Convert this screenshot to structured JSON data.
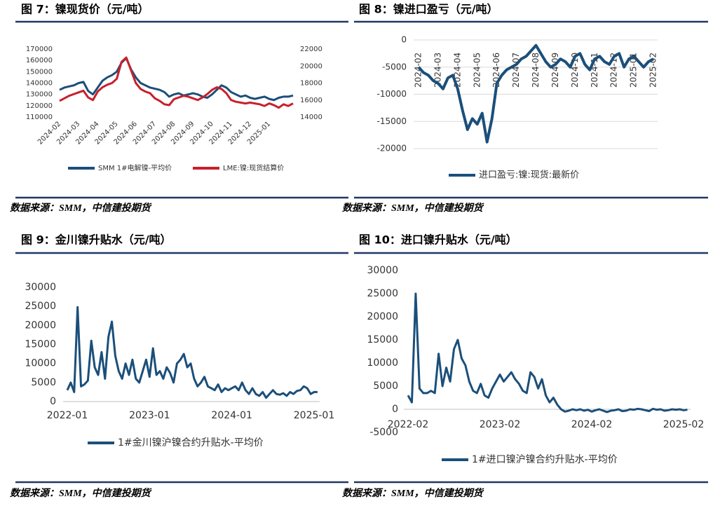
{
  "chart_data": [
    {
      "type": "line",
      "title": "图 7：镍现货价（元/吨）",
      "source": "数据来源：SMM，中信建投期货",
      "categories": [
        "2024-02",
        null,
        null,
        null,
        "2024-03",
        null,
        null,
        null,
        "2024-04",
        null,
        null,
        null,
        "2024-05",
        null,
        null,
        null,
        "2024-06",
        null,
        null,
        null,
        "2024-07",
        null,
        null,
        null,
        "2024-08",
        null,
        null,
        null,
        "2024-09",
        null,
        null,
        null,
        "2024-10",
        null,
        null,
        null,
        "2024-11",
        null,
        null,
        null,
        "2024-12",
        null,
        null,
        null,
        "2025-01",
        null,
        null,
        null,
        null,
        null
      ],
      "ylim": [
        110000,
        170000
      ],
      "yticks": [
        110000,
        120000,
        130000,
        140000,
        150000,
        160000,
        170000
      ],
      "y2lim": [
        14000,
        22000
      ],
      "y2ticks": [
        14000,
        16000,
        18000,
        20000,
        22000
      ],
      "grid": false,
      "series": [
        {
          "name": "SMM 1#电解镍-平均价",
          "color": "#1b4f7a",
          "values": [
            134000,
            136000,
            137000,
            138000,
            140000,
            141000,
            133000,
            130000,
            136000,
            142000,
            145000,
            147000,
            150000,
            158000,
            162000,
            152000,
            145000,
            140000,
            138000,
            136000,
            135000,
            134000,
            132000,
            128000,
            130000,
            131000,
            129000,
            130000,
            131000,
            130000,
            128000,
            127000,
            130000,
            134000,
            138000,
            136000,
            132000,
            130000,
            128000,
            129000,
            127000,
            126000,
            127000,
            128000,
            126000,
            125000,
            127000,
            128000,
            128000,
            129000
          ]
        },
        {
          "name": "LME:镍:现货结算价",
          "color": "#c8202b",
          "axis": "y2",
          "values": [
            15900,
            16200,
            16500,
            16700,
            16900,
            17100,
            16300,
            16000,
            17000,
            17500,
            17800,
            18000,
            18500,
            20500,
            21000,
            19500,
            18000,
            17300,
            17000,
            16800,
            16200,
            15900,
            15500,
            15400,
            16100,
            16300,
            16500,
            16400,
            16200,
            16000,
            16300,
            16700,
            17200,
            17500,
            17300,
            16800,
            16000,
            15800,
            15700,
            15600,
            15700,
            15600,
            15500,
            15300,
            15600,
            15400,
            15100,
            15500,
            15300,
            15600
          ]
        }
      ]
    },
    {
      "type": "line",
      "title": "图 8：镍进口盈亏（元/吨）",
      "source": "数据来源：SMM，中信建投期货",
      "categories": [
        "2024-02",
        null,
        null,
        null,
        "2024-03",
        null,
        null,
        null,
        "2024-04",
        null,
        null,
        null,
        "2024-05",
        null,
        null,
        null,
        "2024-06",
        null,
        null,
        null,
        "2024-07",
        null,
        null,
        null,
        "2024-08",
        null,
        null,
        null,
        "2024-09",
        null,
        null,
        null,
        "2024-10",
        null,
        null,
        null,
        "2024-11",
        null,
        null,
        null,
        "2024-12",
        null,
        null,
        null,
        "2025-01",
        null,
        null,
        null,
        "2025-02"
      ],
      "ylim": [
        -20000,
        0
      ],
      "yticks": [
        -20000,
        -15000,
        -10000,
        -5000,
        0
      ],
      "grid": true,
      "series": [
        {
          "name": "进口盈亏:镍:现货:最新价",
          "color": "#1b4f7a",
          "values": [
            -5000,
            -6000,
            -6500,
            -7500,
            -8000,
            -9000,
            -7000,
            -6500,
            -9000,
            -13000,
            -16500,
            -14500,
            -15500,
            -13500,
            -18800,
            -14500,
            -8000,
            -6500,
            -5500,
            -5000,
            -4500,
            -3500,
            -3000,
            -2000,
            -1000,
            -2500,
            -4000,
            -5000,
            -4500,
            -3500,
            -4000,
            -5000,
            -3000,
            -2500,
            -4500,
            -5500,
            -3500,
            -3000,
            -4000,
            -4500,
            -3000,
            -2500,
            -5000,
            -3500,
            -3000,
            -4000,
            -5000,
            -4000,
            -3500
          ]
        }
      ]
    },
    {
      "type": "line",
      "title": "图 9：金川镍升贴水（元/吨）",
      "source": "数据来源：SMM，中信建投期货",
      "categories": [
        "2022-01",
        null,
        null,
        null,
        null,
        null,
        null,
        null,
        null,
        null,
        null,
        null,
        null,
        null,
        null,
        null,
        null,
        null,
        null,
        null,
        null,
        null,
        null,
        null,
        "2023-01",
        null,
        null,
        null,
        null,
        null,
        null,
        null,
        null,
        null,
        null,
        null,
        null,
        null,
        null,
        null,
        null,
        null,
        null,
        null,
        null,
        null,
        null,
        null,
        "2024-01",
        null,
        null,
        null,
        null,
        null,
        null,
        null,
        null,
        null,
        null,
        null,
        null,
        null,
        null,
        null,
        null,
        null,
        null,
        null,
        null,
        null,
        null,
        null,
        "2025-01",
        null
      ],
      "ylim": [
        0,
        30000
      ],
      "yticks": [
        0,
        5000,
        10000,
        15000,
        20000,
        25000,
        30000
      ],
      "grid": false,
      "series": [
        {
          "name": "1#金川镍沪镍合约升贴水-平均价",
          "color": "#1b4f7a",
          "values": [
            3000,
            5000,
            2500,
            24800,
            4000,
            4500,
            5500,
            16000,
            9000,
            7000,
            13000,
            6000,
            17000,
            21000,
            12000,
            8000,
            6000,
            10000,
            7000,
            11000,
            6000,
            5000,
            8000,
            11000,
            6500,
            14000,
            7000,
            8000,
            6000,
            9000,
            7500,
            5000,
            10000,
            11000,
            12500,
            9000,
            10000,
            6000,
            4000,
            5000,
            6500,
            4000,
            3500,
            3000,
            4500,
            2500,
            3500,
            3000,
            3500,
            4000,
            3000,
            5000,
            3000,
            2000,
            3500,
            2000,
            1500,
            2500,
            1000,
            2000,
            3000,
            2000,
            1800,
            2200,
            1500,
            2500,
            2000,
            2800,
            3000,
            4000,
            3500,
            2000,
            2500,
            2500
          ]
        }
      ]
    },
    {
      "type": "line",
      "title": "图 10：进口镍升贴水（元/吨）",
      "source": "数据来源：SMM，中信建投期货",
      "categories": [
        "2022-02",
        null,
        null,
        null,
        null,
        null,
        null,
        null,
        null,
        null,
        null,
        null,
        null,
        null,
        null,
        null,
        null,
        null,
        null,
        null,
        null,
        null,
        null,
        null,
        "2023-02",
        null,
        null,
        null,
        null,
        null,
        null,
        null,
        null,
        null,
        null,
        null,
        null,
        null,
        null,
        null,
        null,
        null,
        null,
        null,
        null,
        null,
        null,
        null,
        "2024-02",
        null,
        null,
        null,
        null,
        null,
        null,
        null,
        null,
        null,
        null,
        null,
        null,
        null,
        null,
        null,
        null,
        null,
        null,
        null,
        null,
        null,
        null,
        null,
        "2025-02",
        null
      ],
      "ylim": [
        -5000,
        30000
      ],
      "yticks": [
        -5000,
        0,
        5000,
        10000,
        15000,
        20000,
        25000,
        30000
      ],
      "grid": false,
      "series": [
        {
          "name": "1#进口镍沪镍合约升贴水-平均价",
          "color": "#1b4f7a",
          "values": [
            3000,
            1500,
            25000,
            4500,
            3500,
            3500,
            4000,
            3500,
            12000,
            5000,
            9000,
            6000,
            13000,
            15000,
            11000,
            9500,
            6000,
            4000,
            3500,
            5500,
            3000,
            2500,
            4500,
            6000,
            7500,
            6000,
            7000,
            8000,
            6500,
            5500,
            4000,
            3500,
            8000,
            7000,
            4500,
            6500,
            3000,
            1500,
            2500,
            1000,
            0,
            -500,
            -300,
            0,
            -200,
            0,
            -300,
            -100,
            -500,
            -200,
            0,
            -300,
            -600,
            -300,
            -200,
            0,
            -400,
            -300,
            0,
            -100,
            100,
            0,
            -200,
            -400,
            100,
            -100,
            0,
            -300,
            -200,
            0,
            -100,
            0,
            -200,
            -100
          ]
        }
      ]
    }
  ]
}
